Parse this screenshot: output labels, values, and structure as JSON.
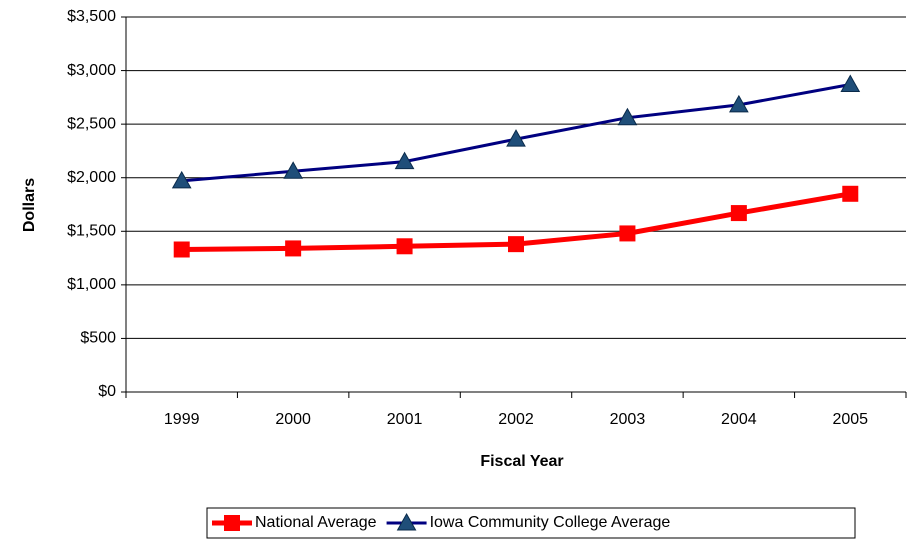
{
  "chart_data": {
    "type": "line",
    "x_label": "Fiscal Year",
    "y_label": "Dollars",
    "categories": [
      "1999",
      "2000",
      "2001",
      "2002",
      "2003",
      "2004",
      "2005"
    ],
    "series": [
      {
        "name": "National Average",
        "color": "#ff0000",
        "marker": "square",
        "values": [
          1330,
          1340,
          1360,
          1380,
          1480,
          1670,
          1850
        ]
      },
      {
        "name": "Iowa Community College Average",
        "color": "#000080",
        "marker": "triangle",
        "values": [
          1970,
          2060,
          2150,
          2360,
          2560,
          2680,
          2870
        ]
      }
    ],
    "ylim": [
      0,
      3500
    ],
    "yticks": [
      {
        "value": 0,
        "label": "$0"
      },
      {
        "value": 500,
        "label": "$500"
      },
      {
        "value": 1000,
        "label": "$1,000"
      },
      {
        "value": 1500,
        "label": "$1,500"
      },
      {
        "value": 2000,
        "label": "$2,000"
      },
      {
        "value": 2500,
        "label": "$2,500"
      },
      {
        "value": 3000,
        "label": "$3,000"
      },
      {
        "value": 3500,
        "label": "$3,500"
      }
    ],
    "grid": true,
    "legend": "bottom"
  }
}
